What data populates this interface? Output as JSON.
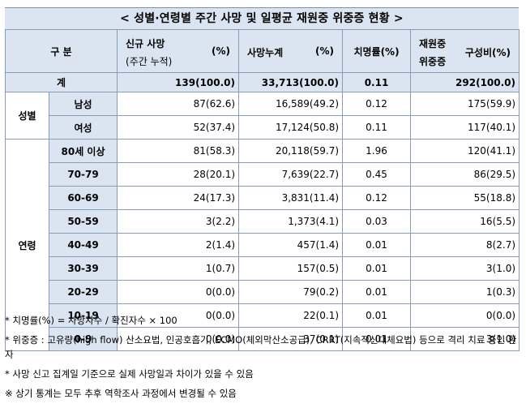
{
  "title": "< 성별·연령별 주간 사망 및 일평균 재원중 위중증 현황 >",
  "header": {
    "group": "구 분",
    "new_deaths": "신규 사망",
    "new_deaths_sub": "(주간 누적)",
    "pct1": "(%)",
    "cum_deaths": "사망누계",
    "pct2": "(%)",
    "fatality": "치명률(%)",
    "severe_a": "재원중",
    "severe_b": "위중증",
    "ratio": "구성비(%)"
  },
  "total": {
    "label": "계",
    "new": "139(100.0)",
    "cum": "33,713(100.0)",
    "cfr": "0.11",
    "severe": "292(100.0)"
  },
  "sex_group": "성별",
  "sex": [
    {
      "label": "남성",
      "new": "87(62.6)",
      "cum": "16,589(49.2)",
      "cfr": "0.12",
      "severe": "175(59.9)"
    },
    {
      "label": "여성",
      "new": "52(37.4)",
      "cum": "17,124(50.8)",
      "cfr": "0.11",
      "severe": "117(40.1)"
    }
  ],
  "age_group": "연령",
  "age": [
    {
      "label": "80세 이상",
      "new": "81(58.3)",
      "cum": "20,118(59.7)",
      "cfr": "1.96",
      "severe": "120(41.1)"
    },
    {
      "label": "70-79",
      "new": "28(20.1)",
      "cum": "7,639(22.7)",
      "cfr": "0.45",
      "severe": "86(29.5)"
    },
    {
      "label": "60-69",
      "new": "24(17.3)",
      "cum": "3,831(11.4)",
      "cfr": "0.12",
      "severe": "55(18.8)"
    },
    {
      "label": "50-59",
      "new": "3(2.2)",
      "cum": "1,373(4.1)",
      "cfr": "0.03",
      "severe": "16(5.5)"
    },
    {
      "label": "40-49",
      "new": "2(1.4)",
      "cum": "457(1.4)",
      "cfr": "0.01",
      "severe": "8(2.7)"
    },
    {
      "label": "30-39",
      "new": "1(0.7)",
      "cum": "157(0.5)",
      "cfr": "0.01",
      "severe": "3(1.0)"
    },
    {
      "label": "20-29",
      "new": "0(0.0)",
      "cum": "79(0.2)",
      "cfr": "0.01",
      "severe": "1(0.3)"
    },
    {
      "label": "10-19",
      "new": "0(0.0)",
      "cum": "22(0.1)",
      "cfr": "0.01",
      "severe": "0(0.0)"
    },
    {
      "label": "0-9",
      "new": "0(0.0)",
      "cum": "37(0.1)",
      "cfr": "0.01",
      "severe": "3(1.0)"
    }
  ],
  "notes": [
    "* 치명률(%) = 사망자수 / 확진자수 × 100",
    "* 위중증 : 고유량(high flow) 산소요법, 인공호흡기, ECMO(체외막산소공급), CRRT(지속적신대체요법) 등으로 격리 치료 중인 환자",
    "* 사망 신고 집계일 기준으로 실제 사망일과 차이가 있을 수 있음",
    "※ 상기 통계는 모두 추후 역학조사 과정에서 변경될 수 있음"
  ]
}
